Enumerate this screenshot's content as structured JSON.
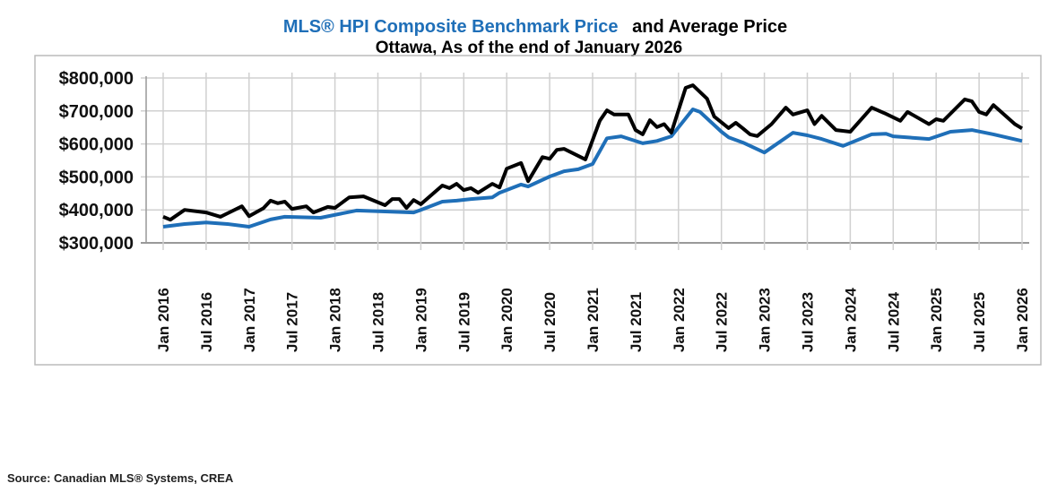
{
  "chart_data": {
    "type": "line",
    "title_part1": "MLS® HPI Composite Benchmark Price",
    "title_part2": "and Average Price",
    "subtitle": "Ottawa, As of the end of January 2026",
    "source": "Source: Canadian MLS® Systems, CREA",
    "xlabel": "",
    "ylabel": "",
    "xlim": [
      "2016-01",
      "2026-01"
    ],
    "ylim": [
      300000,
      800000
    ],
    "grid": true,
    "y_ticks": [
      {
        "value": 800000,
        "label": "$800,000"
      },
      {
        "value": 700000,
        "label": "$700,000"
      },
      {
        "value": 600000,
        "label": "$600,000"
      },
      {
        "value": 500000,
        "label": "$500,000"
      },
      {
        "value": 400000,
        "label": "$400,000"
      },
      {
        "value": 300000,
        "label": "$300,000"
      }
    ],
    "x_ticks": [
      {
        "date": "2016-01",
        "label": "Jan 2016"
      },
      {
        "date": "2016-07",
        "label": "Jul 2016"
      },
      {
        "date": "2017-01",
        "label": "Jan 2017"
      },
      {
        "date": "2017-07",
        "label": "Jul 2017"
      },
      {
        "date": "2018-01",
        "label": "Jan 2018"
      },
      {
        "date": "2018-07",
        "label": "Jul 2018"
      },
      {
        "date": "2019-01",
        "label": "Jan 2019"
      },
      {
        "date": "2019-07",
        "label": "Jul 2019"
      },
      {
        "date": "2020-01",
        "label": "Jan 2020"
      },
      {
        "date": "2020-07",
        "label": "Jul 2020"
      },
      {
        "date": "2021-01",
        "label": "Jan 2021"
      },
      {
        "date": "2021-07",
        "label": "Jul 2021"
      },
      {
        "date": "2022-01",
        "label": "Jan 2022"
      },
      {
        "date": "2022-07",
        "label": "Jul 2022"
      },
      {
        "date": "2023-01",
        "label": "Jan 2023"
      },
      {
        "date": "2023-07",
        "label": "Jul 2023"
      },
      {
        "date": "2024-01",
        "label": "Jan 2024"
      },
      {
        "date": "2024-07",
        "label": "Jul 2024"
      },
      {
        "date": "2025-01",
        "label": "Jan 2025"
      },
      {
        "date": "2025-07",
        "label": "Jul 2025"
      },
      {
        "date": "2026-01",
        "label": "Jan 2026"
      }
    ],
    "series": [
      {
        "name": "MLS® HPI Composite Benchmark Price",
        "color": "#1f6fb8",
        "points": [
          [
            "2016-01",
            349000
          ],
          [
            "2016-04",
            357000
          ],
          [
            "2016-07",
            362000
          ],
          [
            "2016-10",
            357000
          ],
          [
            "2017-01",
            349000
          ],
          [
            "2017-04",
            371000
          ],
          [
            "2017-06",
            379000
          ],
          [
            "2017-11",
            376000
          ],
          [
            "2018-04",
            398000
          ],
          [
            "2018-08",
            395000
          ],
          [
            "2018-12",
            392000
          ],
          [
            "2019-01",
            400000
          ],
          [
            "2019-04",
            425000
          ],
          [
            "2019-06",
            428000
          ],
          [
            "2019-08",
            433000
          ],
          [
            "2019-11",
            438000
          ],
          [
            "2019-12",
            452000
          ],
          [
            "2020-03",
            477000
          ],
          [
            "2020-04",
            471000
          ],
          [
            "2020-07",
            501000
          ],
          [
            "2020-09",
            517000
          ],
          [
            "2020-11",
            523000
          ],
          [
            "2021-01",
            539000
          ],
          [
            "2021-03",
            617000
          ],
          [
            "2021-05",
            623000
          ],
          [
            "2021-08",
            602000
          ],
          [
            "2021-10",
            609000
          ],
          [
            "2021-12",
            623000
          ],
          [
            "2022-03",
            705000
          ],
          [
            "2022-04",
            697000
          ],
          [
            "2022-07",
            637000
          ],
          [
            "2022-08",
            620000
          ],
          [
            "2022-10",
            604000
          ],
          [
            "2023-01",
            574000
          ],
          [
            "2023-05",
            634000
          ],
          [
            "2023-07",
            626000
          ],
          [
            "2023-09",
            615000
          ],
          [
            "2023-12",
            594000
          ],
          [
            "2024-04",
            629000
          ],
          [
            "2024-06",
            631000
          ],
          [
            "2024-07",
            623000
          ],
          [
            "2024-12",
            615000
          ],
          [
            "2025-03",
            637000
          ],
          [
            "2025-06",
            642000
          ],
          [
            "2025-09",
            629000
          ],
          [
            "2026-01",
            609000
          ]
        ]
      },
      {
        "name": "Average Price",
        "color": "#000000",
        "points": [
          [
            "2016-01",
            379000
          ],
          [
            "2016-02",
            370000
          ],
          [
            "2016-04",
            400000
          ],
          [
            "2016-07",
            392000
          ],
          [
            "2016-09",
            379000
          ],
          [
            "2016-12",
            411000
          ],
          [
            "2017-01",
            381000
          ],
          [
            "2017-03",
            405000
          ],
          [
            "2017-04",
            428000
          ],
          [
            "2017-05",
            420000
          ],
          [
            "2017-06",
            425000
          ],
          [
            "2017-07",
            403000
          ],
          [
            "2017-09",
            411000
          ],
          [
            "2017-10",
            392000
          ],
          [
            "2017-12",
            409000
          ],
          [
            "2018-01",
            406000
          ],
          [
            "2018-03",
            438000
          ],
          [
            "2018-05",
            441000
          ],
          [
            "2018-08",
            414000
          ],
          [
            "2018-09",
            433000
          ],
          [
            "2018-10",
            433000
          ],
          [
            "2018-11",
            406000
          ],
          [
            "2018-12",
            430000
          ],
          [
            "2019-01",
            417000
          ],
          [
            "2019-04",
            474000
          ],
          [
            "2019-05",
            466000
          ],
          [
            "2019-06",
            479000
          ],
          [
            "2019-07",
            460000
          ],
          [
            "2019-08",
            466000
          ],
          [
            "2019-09",
            452000
          ],
          [
            "2019-11",
            479000
          ],
          [
            "2019-12",
            468000
          ],
          [
            "2020-01",
            525000
          ],
          [
            "2020-03",
            542000
          ],
          [
            "2020-04",
            487000
          ],
          [
            "2020-06",
            560000
          ],
          [
            "2020-07",
            555000
          ],
          [
            "2020-08",
            582000
          ],
          [
            "2020-09",
            585000
          ],
          [
            "2020-12",
            553000
          ],
          [
            "2021-02",
            670000
          ],
          [
            "2021-03",
            702000
          ],
          [
            "2021-04",
            689000
          ],
          [
            "2021-06",
            689000
          ],
          [
            "2021-07",
            642000
          ],
          [
            "2021-08",
            629000
          ],
          [
            "2021-09",
            672000
          ],
          [
            "2021-10",
            651000
          ],
          [
            "2021-11",
            660000
          ],
          [
            "2021-12",
            634000
          ],
          [
            "2022-02",
            770000
          ],
          [
            "2022-03",
            778000
          ],
          [
            "2022-05",
            737000
          ],
          [
            "2022-06",
            683000
          ],
          [
            "2022-08",
            648000
          ],
          [
            "2022-09",
            664000
          ],
          [
            "2022-10",
            647000
          ],
          [
            "2022-11",
            629000
          ],
          [
            "2022-12",
            624000
          ],
          [
            "2023-02",
            660000
          ],
          [
            "2023-04",
            710000
          ],
          [
            "2023-05",
            689000
          ],
          [
            "2023-07",
            702000
          ],
          [
            "2023-08",
            660000
          ],
          [
            "2023-09",
            685000
          ],
          [
            "2023-11",
            642000
          ],
          [
            "2024-01",
            637000
          ],
          [
            "2024-04",
            710000
          ],
          [
            "2024-06",
            691000
          ],
          [
            "2024-08",
            670000
          ],
          [
            "2024-09",
            697000
          ],
          [
            "2024-12",
            660000
          ],
          [
            "2025-01",
            675000
          ],
          [
            "2025-02",
            670000
          ],
          [
            "2025-05",
            735000
          ],
          [
            "2025-06",
            729000
          ],
          [
            "2025-07",
            697000
          ],
          [
            "2025-08",
            689000
          ],
          [
            "2025-09",
            718000
          ],
          [
            "2025-12",
            660000
          ],
          [
            "2026-01",
            647000
          ]
        ]
      }
    ]
  }
}
